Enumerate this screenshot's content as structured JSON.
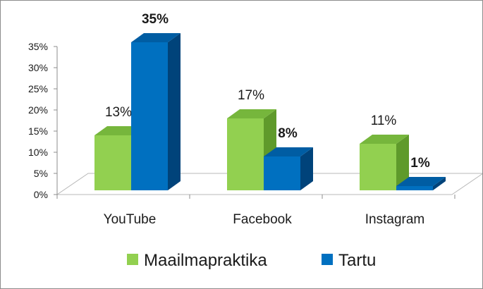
{
  "chart_data": {
    "type": "bar",
    "style": "3d-clustered-column",
    "categories": [
      "YouTube",
      "Facebook",
      "Instagram"
    ],
    "series": [
      {
        "name": "Maailmapraktika",
        "values": [
          13,
          17,
          11
        ],
        "labels": [
          "13%",
          "17%",
          "11%"
        ],
        "label_bold": false,
        "color": "#92d050",
        "color_side": "#5f9a2b",
        "color_top": "#76b63c"
      },
      {
        "name": "Tartu",
        "values": [
          35,
          8,
          1
        ],
        "labels": [
          "35%",
          "8%",
          "1%"
        ],
        "label_bold": true,
        "color": "#0070c0",
        "color_side": "#00437a",
        "color_top": "#005da3"
      }
    ],
    "yticks": [
      "0%",
      "5%",
      "10%",
      "15%",
      "20%",
      "25%",
      "30%",
      "35%"
    ],
    "ylim": [
      0,
      35
    ],
    "title": "",
    "xlabel": "",
    "ylabel": "",
    "grid": false,
    "legend_position": "bottom"
  }
}
